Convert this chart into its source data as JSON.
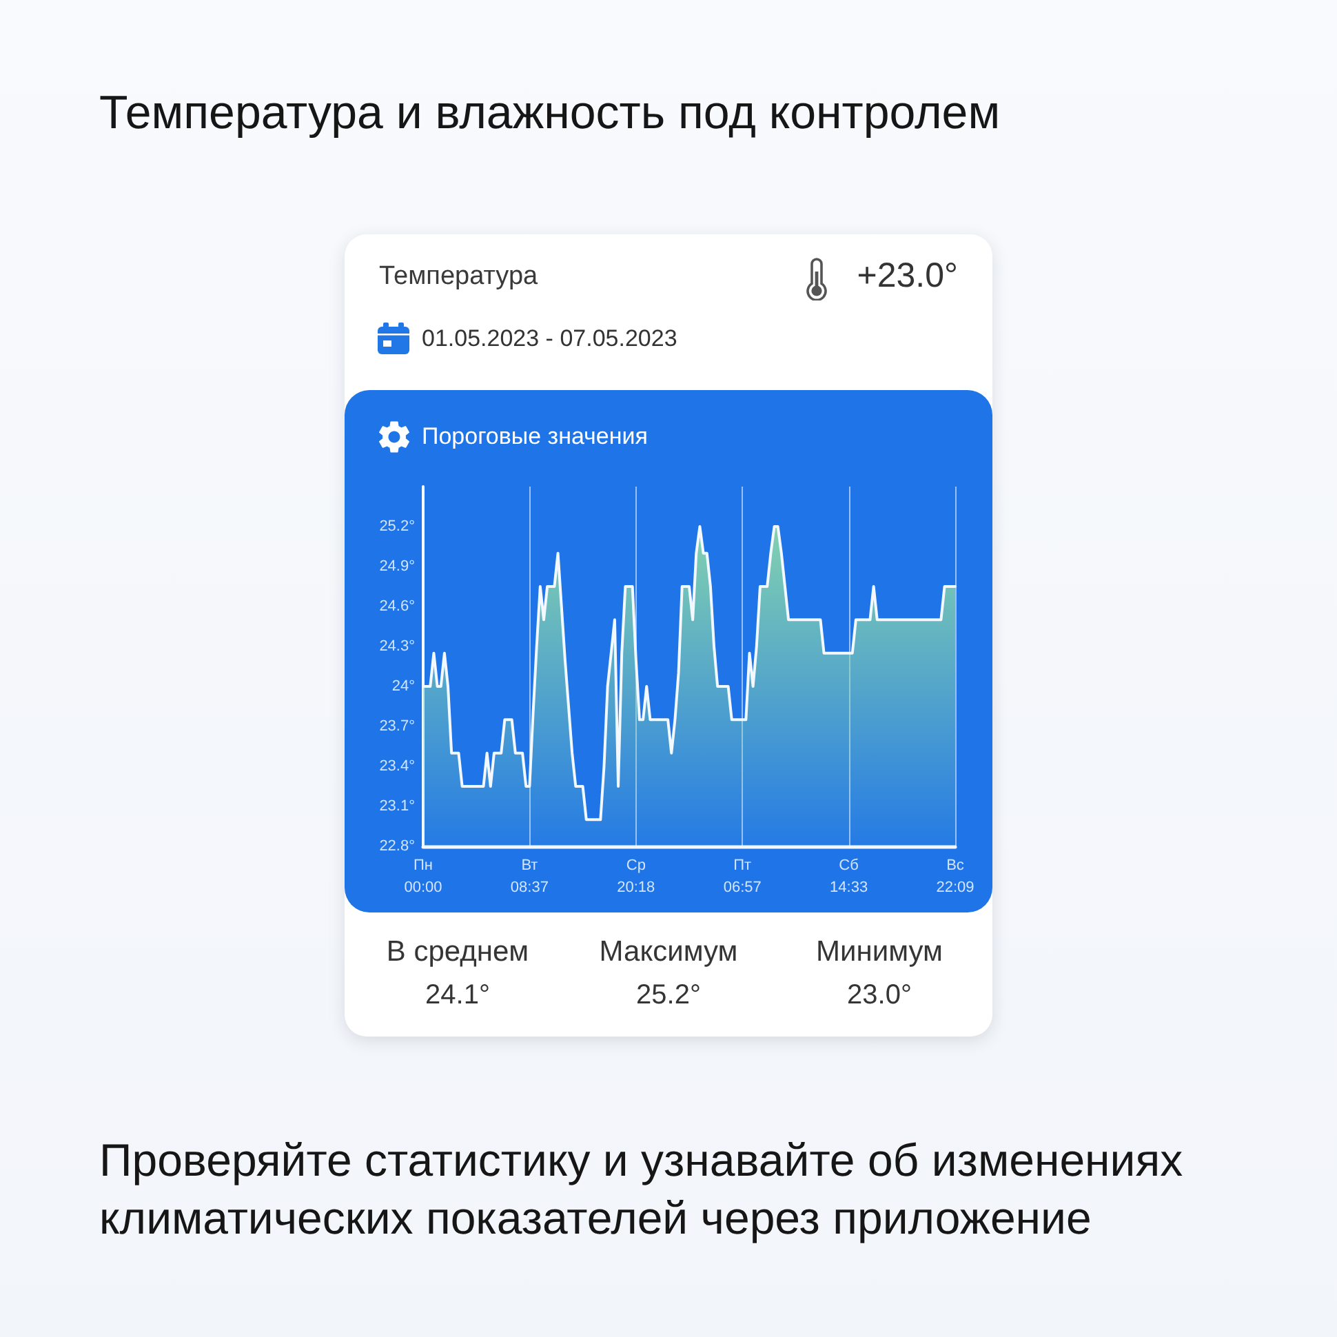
{
  "chart_data": {
    "type": "area",
    "title": "Температура и влажность под контролем",
    "subtitle": "Температура",
    "annotations": [
      "+23.0°",
      "01.05.2023 - 07.05.2023",
      "Пороговые значения",
      "В среднем",
      "24.1°",
      "Максимум",
      "25.2°",
      "Минимум",
      "23.0°",
      "Проверяйте статистику и узнавайте об изменениях климатических показателей через приложение"
    ],
    "categories": [
      "Пн\n00:00",
      null,
      null,
      null,
      null,
      null,
      null,
      null,
      null,
      null,
      null,
      null,
      null,
      null,
      null,
      null,
      null,
      null,
      null,
      null,
      null,
      null,
      null,
      null,
      null,
      null,
      null,
      null,
      null,
      null,
      "Вт\n08:37",
      null,
      null,
      null,
      null,
      null,
      null,
      null,
      null,
      null,
      null,
      null,
      null,
      null,
      null,
      null,
      null,
      null,
      null,
      null,
      null,
      null,
      null,
      null,
      null,
      null,
      null,
      null,
      null,
      null,
      "Ср\n20:18",
      null,
      null,
      null,
      null,
      null,
      null,
      null,
      null,
      null,
      null,
      null,
      null,
      null,
      null,
      null,
      null,
      null,
      null,
      null,
      null,
      null,
      null,
      null,
      null,
      null,
      null,
      null,
      null,
      null,
      "Пт\n06:57",
      null,
      null,
      null,
      null,
      null,
      null,
      null,
      null,
      null,
      null,
      null,
      null,
      null,
      null,
      null,
      null,
      null,
      null,
      null,
      null,
      null,
      null,
      null,
      null,
      null,
      null,
      null,
      null,
      null,
      "Сб\n14:33",
      null,
      null,
      null,
      null,
      null,
      null,
      null,
      null,
      null,
      null,
      null,
      null,
      null,
      null,
      null,
      null,
      null,
      null,
      null,
      null,
      null,
      null,
      null,
      null,
      null,
      null,
      null,
      null,
      null,
      "Вс\n22:09"
    ],
    "series": [
      {
        "color": "#f3f8ff",
        "values": [
          24,
          24,
          24,
          24.25,
          24,
          24,
          24.25,
          24,
          23.5,
          23.5,
          23.5,
          23.25,
          23.25,
          23.25,
          23.25,
          23.25,
          23.25,
          23.25,
          23.5,
          23.25,
          23.5,
          23.5,
          23.5,
          23.75,
          23.75,
          23.75,
          23.5,
          23.5,
          23.5,
          23.25,
          23.25,
          23.8,
          24.3,
          24.75,
          24.5,
          24.75,
          24.75,
          24.75,
          25,
          24.6,
          24.2,
          23.85,
          23.5,
          23.25,
          23.25,
          23.25,
          23,
          23,
          23,
          23,
          23,
          23.4,
          24,
          24.25,
          24.5,
          23.25,
          24.25,
          24.75,
          24.75,
          24.75,
          24.2,
          23.75,
          23.75,
          24,
          23.75,
          23.75,
          23.75,
          23.75,
          23.75,
          23.75,
          23.5,
          23.75,
          24.1,
          24.75,
          24.75,
          24.75,
          24.5,
          25,
          25.2,
          25,
          25,
          24.75,
          24.3,
          24,
          24,
          24,
          24,
          23.75,
          23.75,
          23.75,
          23.75,
          23.75,
          24.25,
          24,
          24.3,
          24.75,
          24.75,
          24.75,
          25,
          25.2,
          25.2,
          25,
          24.75,
          24.5,
          24.5,
          24.5,
          24.5,
          24.5,
          24.5,
          24.5,
          24.5,
          24.5,
          24.5,
          24.25,
          24.25,
          24.25,
          24.25,
          24.25,
          24.25,
          24.25,
          24.25,
          24.25,
          24.5,
          24.5,
          24.5,
          24.5,
          24.5,
          24.75,
          24.5,
          24.5,
          24.5,
          24.5,
          24.5,
          24.5,
          24.5,
          24.5,
          24.5,
          24.5,
          24.5,
          24.5,
          24.5,
          24.5,
          24.5,
          24.5,
          24.5,
          24.5,
          24.5,
          24.75,
          24.75,
          24.75,
          24.75
        ]
      }
    ],
    "ylim": [
      22.8,
      25.5
    ],
    "yticks": [
      {
        "value": 22.8,
        "label": "22.8°"
      },
      {
        "value": 23.1,
        "label": "23.1°"
      },
      {
        "value": 23.4,
        "label": "23.4°"
      },
      {
        "value": 23.7,
        "label": "23.7°"
      },
      {
        "value": 24,
        "label": "24°"
      },
      {
        "value": 24.3,
        "label": "24.3°"
      },
      {
        "value": 24.6,
        "label": "24.6°"
      },
      {
        "value": 24.9,
        "label": "24.9°"
      },
      {
        "value": 25.2,
        "label": "25.2°"
      }
    ],
    "grid": "x",
    "marker": "none"
  }
}
